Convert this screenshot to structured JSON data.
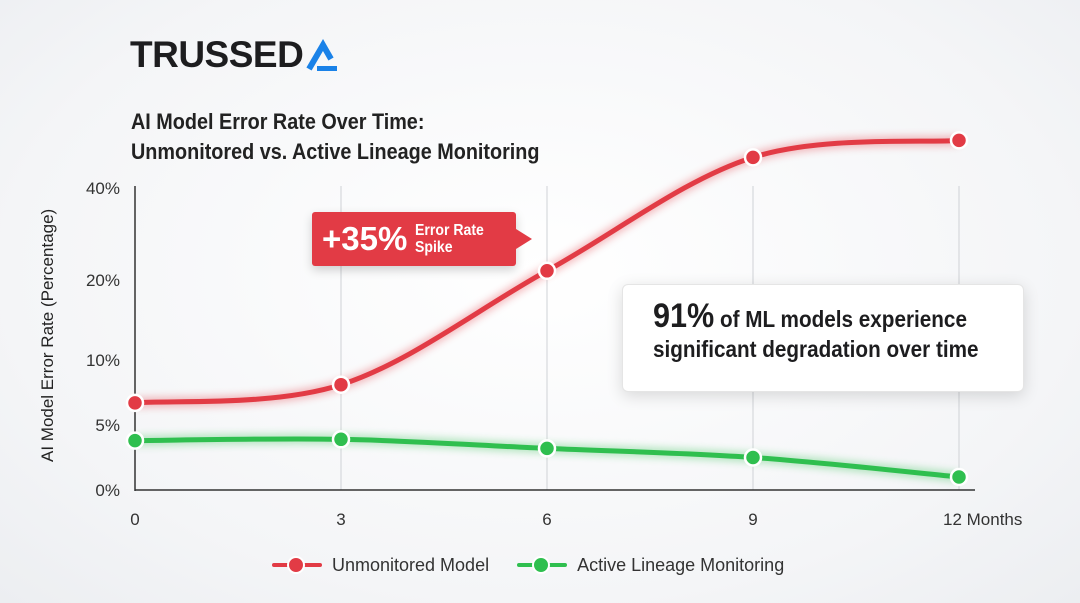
{
  "logo": {
    "text": "TRUSSED",
    "mark": "AI-chevron-logo",
    "accent": "#1a82e8"
  },
  "chart_data": {
    "type": "line",
    "title": "AI Model Error Rate Over Time:",
    "subtitle": "Unmonitored vs. Active Lineage Monitoring",
    "xlabel": "Months",
    "ylabel": "AI Model Error Rate (Percentage)",
    "x": [
      0,
      3,
      6,
      9,
      12
    ],
    "x_tick_labels": [
      "0",
      "3",
      "6",
      "9",
      "12 Months"
    ],
    "y_ticks": [
      0,
      5,
      10,
      20,
      40
    ],
    "y_tick_labels": [
      "0%",
      "5%",
      "10%",
      "20%",
      "40%"
    ],
    "y_scale": "nonlinear (uneven tick spacing)",
    "grid": "vertical lines at x ticks",
    "series": [
      {
        "name": "Unmonitored Model",
        "color": "#e23b45",
        "values": [
          6.7,
          8.1,
          22,
          49,
          54
        ]
      },
      {
        "name": "Active Lineage Monitoring",
        "color": "#2fbf4f",
        "values": [
          3.8,
          3.9,
          3.2,
          2.5,
          1.0
        ]
      }
    ],
    "legend": "bottom",
    "annotations": [
      {
        "big": "+35%",
        "text_line1": "Error Rate",
        "text_line2": "Spike"
      },
      {
        "pct": "91%",
        "line1": "of ML models experience",
        "line2": "significant degradation over time"
      }
    ]
  }
}
